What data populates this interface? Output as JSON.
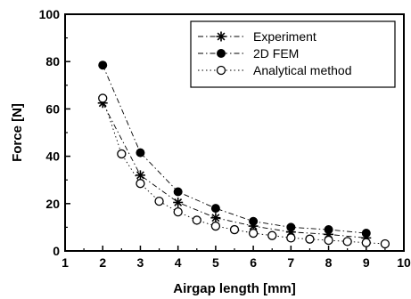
{
  "chart_data": {
    "type": "scatter",
    "title": "",
    "xlabel": "Airgap length [mm]",
    "ylabel": "Force [N]",
    "xlim": [
      1,
      10
    ],
    "ylim": [
      0,
      100
    ],
    "xticks": [
      1,
      2,
      3,
      4,
      5,
      6,
      7,
      8,
      9,
      10
    ],
    "yticks": [
      0,
      20,
      40,
      60,
      80,
      100
    ],
    "grid": false,
    "legend_position": "top-right",
    "series": [
      {
        "name": "Experiment",
        "marker": "asterisk",
        "line": "dash-dot",
        "x": [
          2,
          3,
          4,
          5,
          6,
          7,
          8,
          9
        ],
        "y": [
          62.5,
          32,
          20.5,
          14,
          10.5,
          8,
          7,
          5.5
        ]
      },
      {
        "name": "2D FEM",
        "marker": "filled-circle",
        "line": "dash-dot",
        "x": [
          2,
          3,
          4,
          5,
          6,
          7,
          8,
          9
        ],
        "y": [
          78.5,
          41.5,
          25,
          18,
          12.5,
          10,
          9,
          7.5
        ]
      },
      {
        "name": "Analytical method",
        "marker": "open-circle",
        "line": "dotted",
        "x": [
          2,
          2.5,
          3,
          3.5,
          4,
          4.5,
          5,
          5.5,
          6,
          6.5,
          7,
          7.5,
          8,
          8.5,
          9,
          9.5
        ],
        "y": [
          64.5,
          41,
          28.5,
          21,
          16.5,
          13,
          10.5,
          9,
          7.5,
          6.5,
          5.5,
          5,
          4.5,
          4,
          3.5,
          3
        ]
      }
    ]
  }
}
